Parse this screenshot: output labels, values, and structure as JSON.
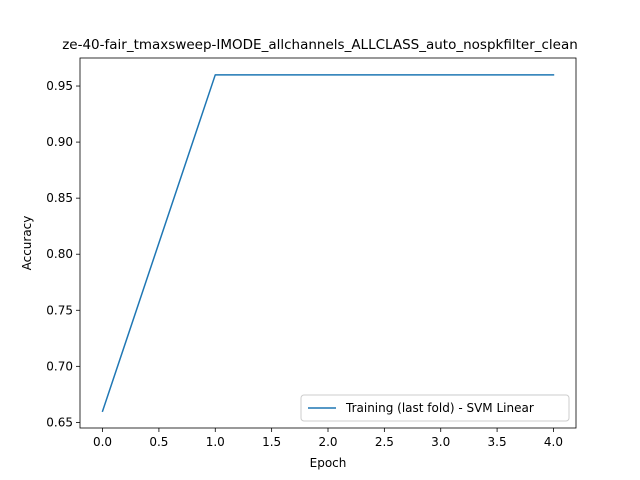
{
  "chart_data": {
    "type": "line",
    "title": "ze-40-fair_tmaxsweep-IMODE_allchannels_ALLCLASS_auto_nospkfilter_clean",
    "xlabel": "Epoch",
    "ylabel": "Accuracy",
    "xlim": [
      -0.2,
      4.2
    ],
    "ylim": [
      0.645,
      0.975
    ],
    "xticks": [
      0.0,
      0.5,
      1.0,
      1.5,
      2.0,
      2.5,
      3.0,
      3.5,
      4.0
    ],
    "xtick_labels": [
      "0.0",
      "0.5",
      "1.0",
      "1.5",
      "2.0",
      "2.5",
      "3.0",
      "3.5",
      "4.0"
    ],
    "yticks": [
      0.65,
      0.7,
      0.75,
      0.8,
      0.85,
      0.9,
      0.95
    ],
    "ytick_labels": [
      "0.65",
      "0.70",
      "0.75",
      "0.80",
      "0.85",
      "0.90",
      "0.95"
    ],
    "grid": false,
    "legend_position": "lower-right",
    "series": [
      {
        "name": "Training (last fold) - SVM Linear",
        "color": "#1f77b4",
        "x": [
          0,
          1,
          2,
          3,
          4
        ],
        "y": [
          0.66,
          0.96,
          0.96,
          0.96,
          0.96
        ]
      }
    ]
  }
}
